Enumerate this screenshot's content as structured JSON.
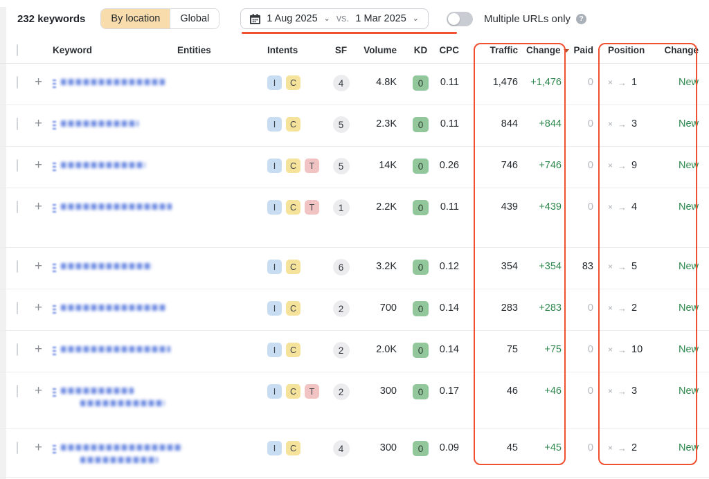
{
  "toolbar": {
    "keyword_count": "232 keywords",
    "segmented": {
      "by_location": "By location",
      "global": "Global"
    },
    "datepicker": {
      "date_from": "1 Aug 2025",
      "vs": "vs.",
      "date_to": "1 Mar 2025"
    },
    "toggle_label": "Multiple URLs only",
    "help_icon": "?"
  },
  "table": {
    "headers": {
      "keyword": "Keyword",
      "entities": "Entities",
      "intents": "Intents",
      "sf": "SF",
      "volume": "Volume",
      "kd": "KD",
      "cpc": "CPC",
      "traffic": "Traffic",
      "change": "Change",
      "paid": "Paid",
      "position": "Position",
      "change2": "Change"
    },
    "position_from_symbol": "×",
    "position_arrow": "→",
    "rows": [
      {
        "keyword_redacted": true,
        "intents": [
          "I",
          "C"
        ],
        "sf": "4",
        "volume": "4.8K",
        "kd": "0",
        "cpc": "0.11",
        "traffic": "1,476",
        "change": "+1,476",
        "paid": "0",
        "paid_muted": true,
        "position": "1",
        "pos_change": "New",
        "blur": [
          150
        ]
      },
      {
        "keyword_redacted": true,
        "intents": [
          "I",
          "C"
        ],
        "sf": "5",
        "volume": "2.3K",
        "kd": "0",
        "cpc": "0.11",
        "traffic": "844",
        "change": "+844",
        "paid": "0",
        "paid_muted": true,
        "position": "3",
        "pos_change": "New",
        "blur": [
          112
        ]
      },
      {
        "keyword_redacted": true,
        "intents": [
          "I",
          "C",
          "T"
        ],
        "sf": "5",
        "volume": "14K",
        "kd": "0",
        "cpc": "0.26",
        "traffic": "746",
        "change": "+746",
        "paid": "0",
        "paid_muted": true,
        "position": "9",
        "pos_change": "New",
        "blur": [
          122
        ]
      },
      {
        "keyword_redacted": true,
        "intents": [
          "I",
          "C",
          "T"
        ],
        "sf": "1",
        "volume": "2.2K",
        "kd": "0",
        "cpc": "0.11",
        "traffic": "439",
        "change": "+439",
        "paid": "0",
        "paid_muted": true,
        "position": "4",
        "pos_change": "New",
        "blur": [
          160
        ],
        "tall": 1
      },
      {
        "keyword_redacted": true,
        "intents": [
          "I",
          "C"
        ],
        "sf": "6",
        "volume": "3.2K",
        "kd": "0",
        "cpc": "0.12",
        "traffic": "354",
        "change": "+354",
        "paid": "83",
        "paid_muted": false,
        "position": "5",
        "pos_change": "New",
        "blur": [
          132
        ]
      },
      {
        "keyword_redacted": true,
        "intents": [
          "I",
          "C"
        ],
        "sf": "2",
        "volume": "700",
        "kd": "0",
        "cpc": "0.14",
        "traffic": "283",
        "change": "+283",
        "paid": "0",
        "paid_muted": true,
        "position": "2",
        "pos_change": "New",
        "blur": [
          152
        ]
      },
      {
        "keyword_redacted": true,
        "intents": [
          "I",
          "C"
        ],
        "sf": "2",
        "volume": "2.0K",
        "kd": "0",
        "cpc": "0.14",
        "traffic": "75",
        "change": "+75",
        "paid": "0",
        "paid_muted": true,
        "position": "10",
        "pos_change": "New",
        "blur": [
          158
        ]
      },
      {
        "keyword_redacted": true,
        "intents": [
          "I",
          "C",
          "T"
        ],
        "sf": "2",
        "volume": "300",
        "kd": "0",
        "cpc": "0.17",
        "traffic": "46",
        "change": "+46",
        "paid": "0",
        "paid_muted": true,
        "position": "3",
        "pos_change": "New",
        "blur": [
          105,
          122
        ],
        "tall": 2
      },
      {
        "keyword_redacted": true,
        "intents": [
          "I",
          "C"
        ],
        "sf": "4",
        "volume": "300",
        "kd": "0",
        "cpc": "0.09",
        "traffic": "45",
        "change": "+45",
        "paid": "0",
        "paid_muted": true,
        "position": "2",
        "pos_change": "New",
        "blur": [
          175,
          112
        ],
        "tall": 3
      }
    ]
  },
  "colors": {
    "annotation_red": "#f04f30",
    "positive_green": "#2e884d",
    "selected_segment_bg": "#f8dcab",
    "kd_badge_bg": "#92c79c",
    "intent_i_bg": "#c9ddf2",
    "intent_c_bg": "#f5e29b",
    "intent_t_bg": "#f2c3c3"
  }
}
